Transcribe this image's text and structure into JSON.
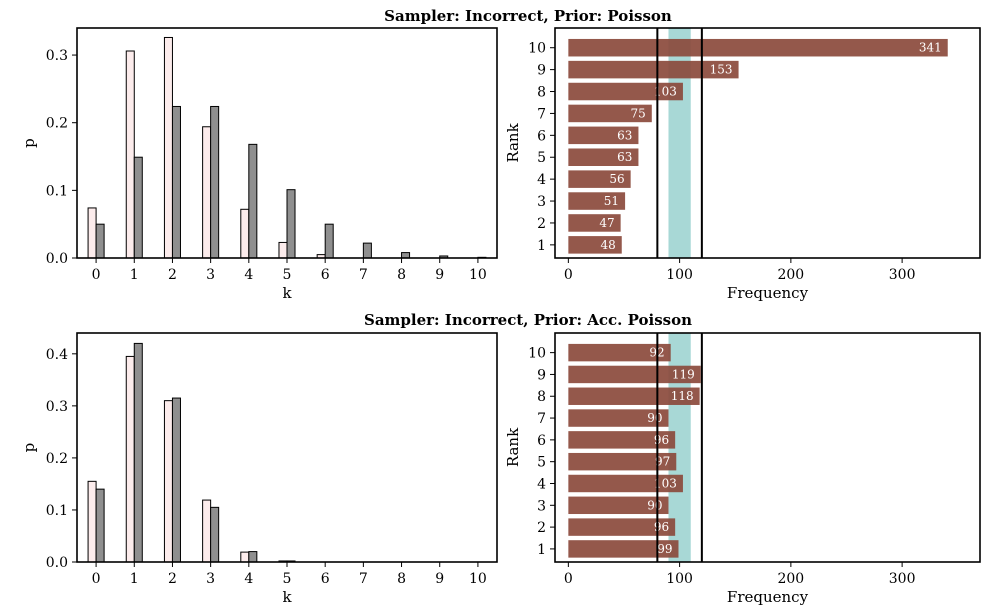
{
  "chart_data": [
    {
      "id": "row1",
      "title": "Sampler: Incorrect, Prior: Poisson",
      "pmf": {
        "type": "bar",
        "xlabel": "k",
        "ylabel": "p",
        "ylim": [
          0,
          0.34
        ],
        "yticks": [
          "0.0",
          "0.1",
          "0.2",
          "0.3"
        ],
        "ytick_values": [
          0,
          0.1,
          0.2,
          0.3
        ],
        "categories": [
          "0",
          "1",
          "2",
          "3",
          "4",
          "5",
          "6",
          "7",
          "8",
          "9",
          "10"
        ],
        "series": [
          {
            "values": [
              0.074,
              0.306,
              0.326,
              0.194,
              0.072,
              0.023,
              0.005,
              0.0,
              0.0,
              0.0,
              0.0
            ],
            "color": "#fcecec"
          },
          {
            "values": [
              0.05,
              0.149,
              0.224,
              0.224,
              0.168,
              0.101,
              0.05,
              0.022,
              0.008,
              0.003,
              0.001
            ],
            "color": "#8f8f8f"
          }
        ]
      },
      "rank": {
        "type": "bar",
        "orientation": "horizontal",
        "xlabel": "Frequency",
        "ylabel": "Rank",
        "xlim": [
          -12,
          370
        ],
        "xticks": [
          "0",
          "100",
          "200",
          "300"
        ],
        "xtick_values": [
          0,
          100,
          200,
          300
        ],
        "categories": [
          "1",
          "2",
          "3",
          "4",
          "5",
          "6",
          "7",
          "8",
          "9",
          "10"
        ],
        "values": [
          48,
          47,
          51,
          56,
          63,
          63,
          75,
          103,
          153,
          341
        ],
        "value_labels": [
          "48",
          "47",
          "51",
          "56",
          "63",
          "63",
          "75",
          "103",
          "153",
          "341"
        ],
        "bar_color": "#8b4a3c",
        "band": {
          "low": 90,
          "high": 110,
          "color": "#a8d8d6"
        },
        "vlines": [
          80,
          120
        ]
      }
    },
    {
      "id": "row2",
      "title": "Sampler: Incorrect, Prior: Acc. Poisson",
      "pmf": {
        "type": "bar",
        "xlabel": "k",
        "ylabel": "p",
        "ylim": [
          0,
          0.44
        ],
        "yticks": [
          "0.0",
          "0.1",
          "0.2",
          "0.3",
          "0.4"
        ],
        "ytick_values": [
          0,
          0.1,
          0.2,
          0.3,
          0.4
        ],
        "categories": [
          "0",
          "1",
          "2",
          "3",
          "4",
          "5",
          "6",
          "7",
          "8",
          "9",
          "10"
        ],
        "series": [
          {
            "values": [
              0.155,
              0.395,
              0.31,
              0.119,
              0.019,
              0.002,
              0.0,
              0.0,
              0.0,
              0.0,
              0.0
            ],
            "color": "#fcecec"
          },
          {
            "values": [
              0.14,
              0.42,
              0.315,
              0.105,
              0.02,
              0.002,
              0.0,
              0.0,
              0.0,
              0.0,
              0.0
            ],
            "color": "#8f8f8f"
          }
        ]
      },
      "rank": {
        "type": "bar",
        "orientation": "horizontal",
        "xlabel": "Frequency",
        "ylabel": "Rank",
        "xlim": [
          -12,
          370
        ],
        "xticks": [
          "0",
          "100",
          "200",
          "300"
        ],
        "xtick_values": [
          0,
          100,
          200,
          300
        ],
        "categories": [
          "1",
          "2",
          "3",
          "4",
          "5",
          "6",
          "7",
          "8",
          "9",
          "10"
        ],
        "values": [
          99,
          96,
          90,
          103,
          97,
          96,
          90,
          118,
          119,
          92
        ],
        "value_labels": [
          "99",
          "96",
          "90",
          "103",
          "97",
          "96",
          "90",
          "118",
          "119",
          "92"
        ],
        "bar_color": "#8b4a3c",
        "band": {
          "low": 90,
          "high": 110,
          "color": "#a8d8d6"
        },
        "vlines": [
          80,
          120
        ]
      }
    }
  ]
}
